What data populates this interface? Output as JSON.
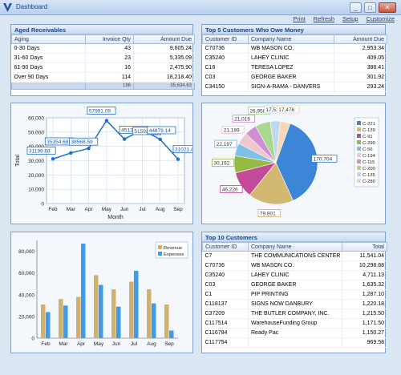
{
  "window": {
    "title": "Dashboard",
    "minimize": "_",
    "maximize": "□",
    "close": "✕"
  },
  "toolbar": {
    "print": "Print",
    "refresh": "Refresh",
    "setup": "Setup",
    "customize": "Customize"
  },
  "aged": {
    "title": "Aged Receivables",
    "headers": [
      "Aging",
      "Invoice Qty",
      "Amount Due"
    ],
    "rows": [
      [
        "0-30 Days",
        "43",
        "9,605.24"
      ],
      [
        "31-60 Days",
        "23",
        "5,335.09"
      ],
      [
        "61-90 Days",
        "16",
        "2,475.90"
      ],
      [
        "Over 90 Days",
        "114",
        "18,218.40"
      ]
    ],
    "total_qty": "196",
    "total_amount": "35,634.63"
  },
  "top5": {
    "title": "Top 5 Customers Who Owe Money",
    "headers": [
      "Customer ID",
      "Company Name",
      "Amount Due"
    ],
    "rows": [
      [
        "C70736",
        "WB MASON CO.",
        "2,953.34"
      ],
      [
        "C35240",
        "LAHEY CLINIC",
        "409.05"
      ],
      [
        "C16",
        "TERESA LOPEZ",
        "388.41"
      ],
      [
        "C03",
        "GEORGE BAKER",
        "301.92"
      ],
      [
        "C34150",
        "SIGN-A-RAMA - DANVERS",
        "293.24"
      ]
    ]
  },
  "top10": {
    "title": "Top 10 Customers",
    "headers": [
      "Customer ID",
      "Company Name",
      "Total"
    ],
    "rows": [
      [
        "C7",
        "THE COMMUNICATIONS CENTER",
        "11,541.04"
      ],
      [
        "C70736",
        "WB MASON CO.",
        "10,298.68"
      ],
      [
        "C35240",
        "LAHEY CLINIC",
        "4,711.13"
      ],
      [
        "C03",
        "GEORGE BAKER",
        "1,635.32"
      ],
      [
        "C1",
        "PIP PRINTING",
        "1,287.10"
      ],
      [
        "C118137",
        "SIGNS NOW DANBURY",
        "1,220.18"
      ],
      [
        "C37209",
        "THE BUTLER COMPANY, INC.",
        "1,215.50"
      ],
      [
        "C117514",
        "WarehouseFunding Group",
        "1,171.50"
      ],
      [
        "C116784",
        "Ready Pac",
        "1,150.27"
      ],
      [
        "C117754",
        "",
        "969.58"
      ]
    ]
  },
  "chart_data": [
    {
      "type": "line",
      "categories": [
        "Feb",
        "Mar",
        "Apr",
        "May",
        "Jun",
        "Jul",
        "Aug",
        "Sep"
      ],
      "series": [
        {
          "values": [
            31199.68,
            35354.68,
            38568.59,
            57991.09,
            45126.84,
            51592.54,
            44879.14,
            31021.44
          ]
        }
      ],
      "data_labels": [
        "31199.68",
        "35354.68",
        "38568.59",
        "57991.09",
        "45126.84",
        "51592.54",
        "44879.14",
        "31021.44"
      ],
      "xlabel": "Month",
      "ylabel": "Total",
      "ylim": [
        0,
        60000
      ],
      "yticks": [
        "0",
        "10,000",
        "20,000",
        "30,000",
        "40,000",
        "50,000",
        "60,000"
      ],
      "grid": true,
      "color": "#1f6fc5"
    },
    {
      "type": "pie",
      "categories": [
        "C-221",
        "C-139",
        "C-91",
        "C-290",
        "C-56",
        "C-194",
        "C-115",
        "C-200",
        "C-135",
        "C-280"
      ],
      "values": [
        170704,
        79801,
        46226,
        30192,
        22197,
        21189,
        21016,
        26958,
        17529,
        17476
      ],
      "labels": [
        "170,704",
        "79,801",
        "46,226",
        "30,192",
        "22,197",
        "21,189",
        "21,016",
        "26,958",
        "17,529",
        "17,476"
      ],
      "colors": [
        "#3d85d6",
        "#d3b872",
        "#c64a9a",
        "#96bb45",
        "#7fc1e6",
        "#f1c7cf",
        "#cf8fd2",
        "#a9d88e",
        "#bfd8ef",
        "#f4d7b8"
      ],
      "legend": "right"
    },
    {
      "type": "bar",
      "categories": [
        "Feb",
        "Mar",
        "Apr",
        "May",
        "Jun",
        "Jul",
        "Aug",
        "Sep"
      ],
      "series": [
        {
          "name": "Revenue",
          "values": [
            31000,
            36000,
            38000,
            58000,
            45000,
            52000,
            45000,
            31000
          ],
          "color": "#d1b16b"
        },
        {
          "name": "Expenses",
          "values": [
            24000,
            30000,
            87000,
            49000,
            29000,
            62000,
            32000,
            7000
          ],
          "color": "#3f9bea"
        }
      ],
      "ylim": [
        0,
        90000
      ],
      "yticks": [
        "0",
        "20,000",
        "40,000",
        "60,000",
        "80,000"
      ],
      "legend": "top-right",
      "grid": false
    }
  ]
}
